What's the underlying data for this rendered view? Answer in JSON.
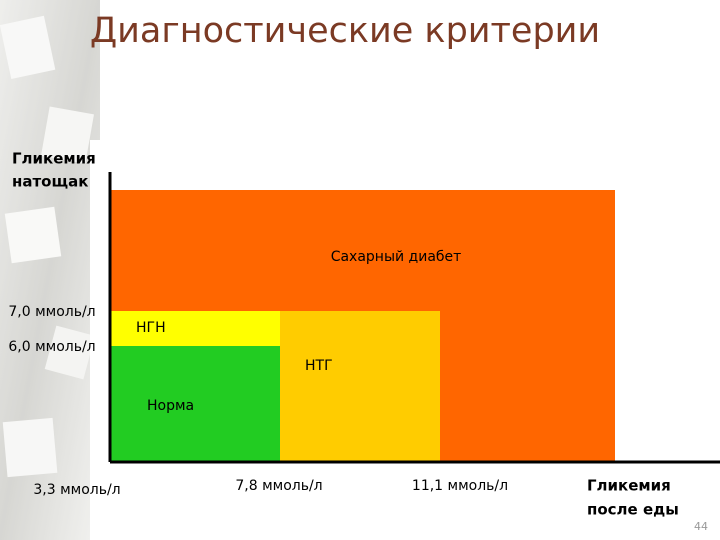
{
  "header": {
    "title": "Диагностические критерии"
  },
  "diagram": {
    "regions": [
      {
        "label": "Сахарный диабет"
      },
      {
        "label": "НГН"
      },
      {
        "label": "НТГ"
      },
      {
        "label": "Норма"
      }
    ]
  },
  "y_axis": {
    "title": [
      "Гликемия",
      "натощак"
    ],
    "labels": [
      "7,0 ммоль/л",
      "6,0 ммоль/л"
    ]
  },
  "x_axis": {
    "title": [
      "Гликемия",
      "после еды"
    ],
    "labels": [
      "3,3 ммоль/л",
      "7,8 ммоль/л",
      "11,1 ммоль/л"
    ]
  },
  "footer": {
    "page_number": "44"
  }
}
